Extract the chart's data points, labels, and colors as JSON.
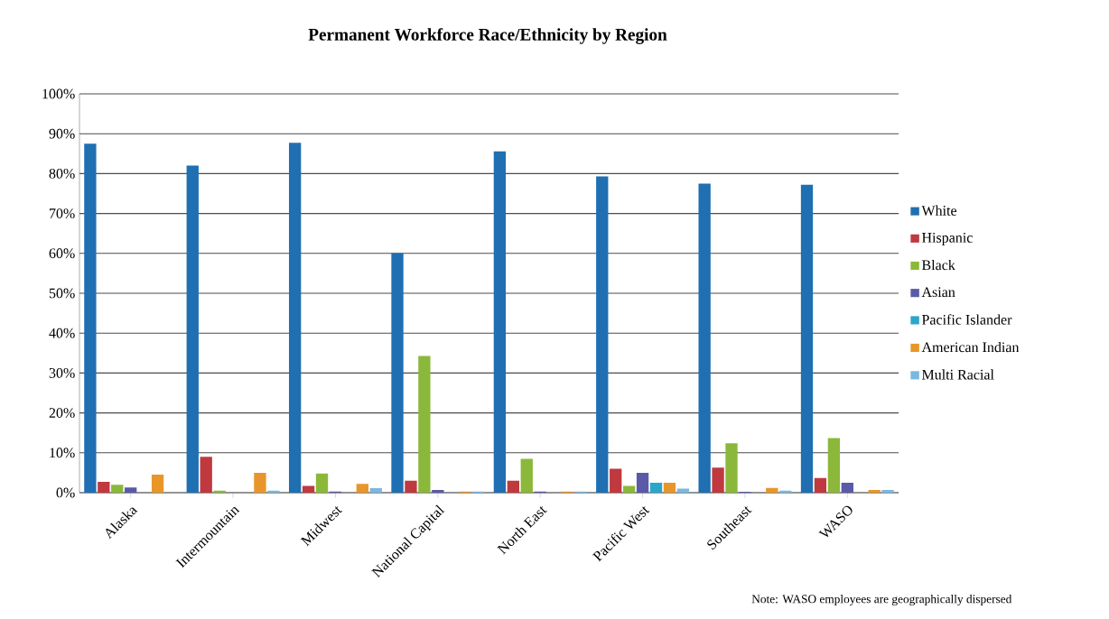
{
  "chart_data": {
    "type": "bar",
    "title": "Permanent Workforce Race/Ethnicity by Region",
    "categories": [
      "Alaska",
      "Intermountain",
      "Midwest",
      "National Capital",
      "North East",
      "Pacific West",
      "Southeast",
      "WASO"
    ],
    "series": [
      {
        "name": "White",
        "color": "#1f6fb2",
        "values": [
          87.5,
          82,
          87.7,
          60,
          85.6,
          79.3,
          77.5,
          77.2
        ]
      },
      {
        "name": "Hispanic",
        "color": "#c0393f",
        "values": [
          2.7,
          9,
          1.7,
          3,
          3,
          6,
          6.3,
          3.7
        ]
      },
      {
        "name": "Black",
        "color": "#8bb83a",
        "values": [
          2,
          0.5,
          4.8,
          34.3,
          8.5,
          1.7,
          12.4,
          13.7
        ]
      },
      {
        "name": "Asian",
        "color": "#5a5aa8",
        "values": [
          1.3,
          0,
          0.3,
          0.7,
          0.3,
          5,
          0.2,
          2.5
        ]
      },
      {
        "name": "Pacific Islander",
        "color": "#2aa6c8",
        "values": [
          0,
          0,
          0,
          0,
          0,
          2.5,
          0,
          0
        ]
      },
      {
        "name": "American Indian",
        "color": "#e8962a",
        "values": [
          4.5,
          5,
          2.2,
          0.3,
          0.3,
          2.5,
          1.2,
          0.7
        ]
      },
      {
        "name": "Multi Racial",
        "color": "#7ab8e0",
        "values": [
          0,
          0.5,
          1.2,
          0.3,
          0.3,
          1,
          0.5,
          0.7
        ]
      }
    ],
    "ylim": [
      0,
      100
    ],
    "yticks": [
      {
        "value": 0,
        "label": "0%"
      },
      {
        "value": 10,
        "label": "10%"
      },
      {
        "value": 20,
        "label": "20%"
      },
      {
        "value": 30,
        "label": "30%"
      },
      {
        "value": 40,
        "label": "40%"
      },
      {
        "value": 50,
        "label": "50%"
      },
      {
        "value": 60,
        "label": "60%"
      },
      {
        "value": 70,
        "label": "70%"
      },
      {
        "value": 80,
        "label": "80%"
      },
      {
        "value": 90,
        "label": "90%"
      },
      {
        "value": 100,
        "label": "100%"
      }
    ],
    "grid": "y",
    "legend": "right",
    "annotations": [
      "Note: WASO employees are geographically dispersed"
    ]
  }
}
